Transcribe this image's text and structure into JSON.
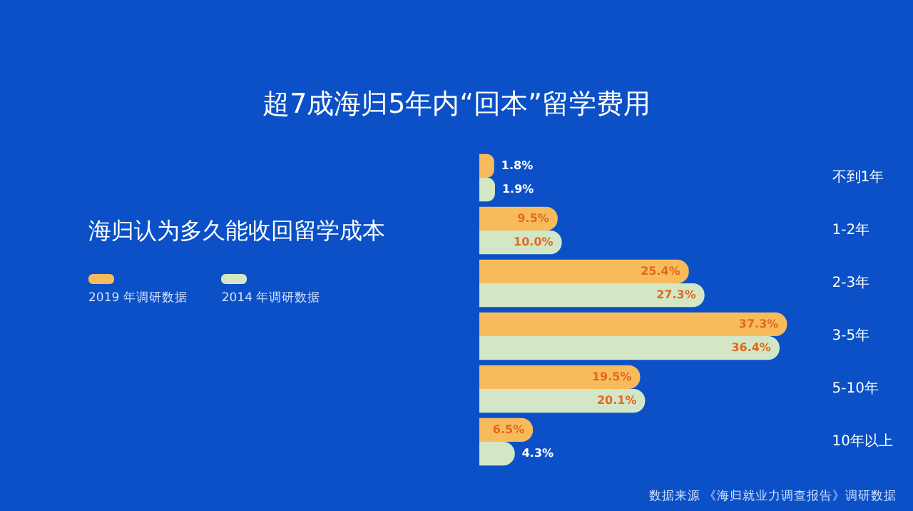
{
  "chart_data": {
    "type": "bar",
    "orientation": "horizontal",
    "title": "超7成海归5年内“回本”留学费用",
    "subtitle": "海归认为多久能收回留学成本",
    "categories": [
      "不到1年",
      "1-2年",
      "2-3年",
      "3-5年",
      "5-10年",
      "10年以上"
    ],
    "series": [
      {
        "name": "2019 年调研数据",
        "color": "#f8bb5c",
        "values": [
          1.8,
          9.5,
          25.4,
          37.3,
          19.5,
          6.5
        ],
        "value_labels": [
          "1.8%",
          "9.5%",
          "25.4%",
          "37.3%",
          "19.5%",
          "6.5%"
        ]
      },
      {
        "name": "2014 年调研数据",
        "color": "#d3e7c6",
        "values": [
          1.9,
          10.0,
          27.3,
          36.4,
          20.1,
          4.3
        ],
        "value_labels": [
          "1.9%",
          "10.0%",
          "27.3%",
          "36.4%",
          "20.1%",
          "4.3%"
        ]
      }
    ],
    "legend": "left",
    "grid": false,
    "tick_labels": "y",
    "annotations": [
      "数据来源  《海归就业力调查报告》调研数据"
    ]
  }
}
